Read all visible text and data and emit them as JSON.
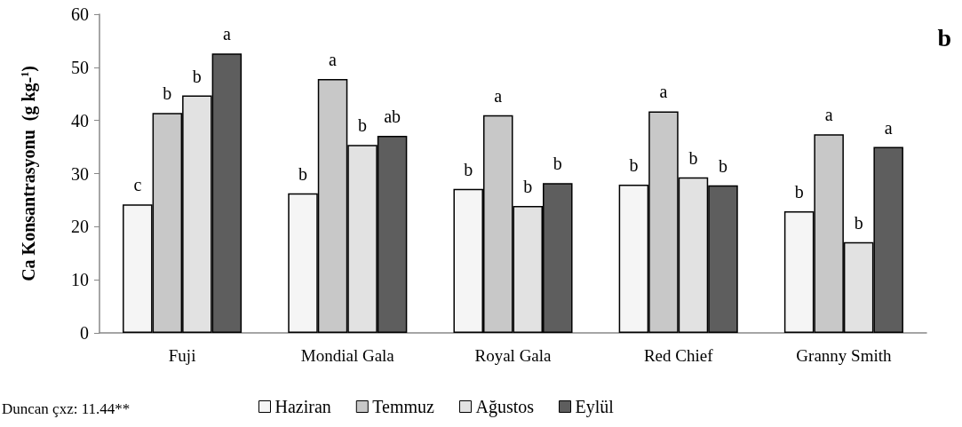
{
  "chart_data": {
    "type": "bar",
    "categories": [
      "Fuji",
      "Mondial Gala",
      "Royal Gala",
      "Red Chief",
      "Granny Smith"
    ],
    "ylabel": "Ca Konsantrasyonu  (g kg-$^{1}$)",
    "ylim": [
      0,
      60
    ],
    "yticks": [
      0,
      10,
      20,
      30,
      40,
      50,
      60
    ],
    "series": [
      {
        "name": "Haziran",
        "color": "#f5f5f5",
        "values": [
          24.2,
          26.3,
          27.1,
          27.9,
          22.9
        ],
        "value_labels": [
          "c",
          "b",
          "b",
          "b",
          "b"
        ]
      },
      {
        "name": "Temmuz",
        "color": "#c8c8c8",
        "values": [
          41.4,
          47.8,
          41.0,
          41.7,
          37.4
        ],
        "value_labels": [
          "b",
          "a",
          "a",
          "a",
          "a"
        ]
      },
      {
        "name": "Ağustos",
        "color": "#e2e2e2",
        "values": [
          44.7,
          35.4,
          23.9,
          29.3,
          17.1
        ],
        "value_labels": [
          "b",
          "b",
          "b",
          "b",
          "b"
        ]
      },
      {
        "name": "Eylül",
        "color": "#5e5e5e",
        "values": [
          52.6,
          37.1,
          28.2,
          27.8,
          35.0
        ],
        "value_labels": [
          "a",
          "ab",
          "b",
          "b",
          "a"
        ]
      }
    ],
    "annotations": [
      "b",
      "Duncan çxz: 11.44**"
    ],
    "grid": false,
    "legend": "bottom"
  }
}
